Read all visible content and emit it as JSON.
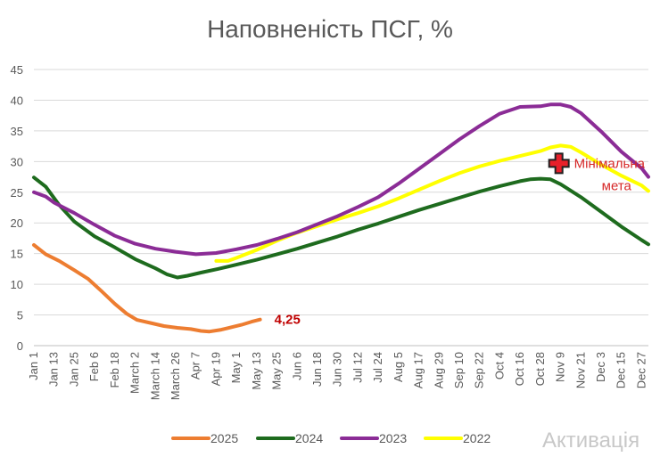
{
  "chart_data": {
    "type": "line",
    "title": "Наповненість ПСГ, %",
    "xlabel": "",
    "ylabel": "",
    "ylim": [
      0,
      45
    ],
    "y_ticks": [
      0,
      5,
      10,
      15,
      20,
      25,
      30,
      35,
      40,
      45
    ],
    "x_ticks": [
      {
        "day": 1,
        "label": "Jan 1"
      },
      {
        "day": 13,
        "label": "Jan 13"
      },
      {
        "day": 25,
        "label": "Jan 25"
      },
      {
        "day": 37,
        "label": "Feb 6"
      },
      {
        "day": 49,
        "label": "Feb 18"
      },
      {
        "day": 61,
        "label": "March 2"
      },
      {
        "day": 73,
        "label": "March 14"
      },
      {
        "day": 85,
        "label": "March 26"
      },
      {
        "day": 97,
        "label": "Apr 7"
      },
      {
        "day": 109,
        "label": "Apr 19"
      },
      {
        "day": 121,
        "label": "May 1"
      },
      {
        "day": 133,
        "label": "May 13"
      },
      {
        "day": 145,
        "label": "May 25"
      },
      {
        "day": 157,
        "label": "Jun 6"
      },
      {
        "day": 169,
        "label": "Jun 18"
      },
      {
        "day": 181,
        "label": "Jun 30"
      },
      {
        "day": 193,
        "label": "Jul 12"
      },
      {
        "day": 205,
        "label": "Jul 24"
      },
      {
        "day": 217,
        "label": "Aug 5"
      },
      {
        "day": 229,
        "label": "Aug 17"
      },
      {
        "day": 241,
        "label": "Aug 29"
      },
      {
        "day": 253,
        "label": "Sep 10"
      },
      {
        "day": 265,
        "label": "Sep 22"
      },
      {
        "day": 277,
        "label": "Oct 4"
      },
      {
        "day": 289,
        "label": "Oct 16"
      },
      {
        "day": 301,
        "label": "Oct 28"
      },
      {
        "day": 313,
        "label": "Nov 9"
      },
      {
        "day": 325,
        "label": "Nov 21"
      },
      {
        "day": 337,
        "label": "Dec 3"
      },
      {
        "day": 349,
        "label": "Dec 15"
      },
      {
        "day": 361,
        "label": "Dec 27"
      }
    ],
    "x_range": [
      1,
      365
    ],
    "grid": true,
    "legend_position": "bottom",
    "series": [
      {
        "name": "2025",
        "color": "#ed7d31",
        "x": [
          1,
          8,
          16,
          25,
          33,
          41,
          49,
          56,
          62,
          70,
          78,
          86,
          94,
          100,
          105,
          112,
          118,
          124,
          130,
          135
        ],
        "y": [
          16.4,
          14.9,
          13.8,
          12.3,
          10.9,
          8.9,
          6.8,
          5.2,
          4.2,
          3.7,
          3.2,
          2.9,
          2.7,
          2.4,
          2.3,
          2.6,
          3.0,
          3.4,
          3.9,
          4.25
        ]
      },
      {
        "name": "2024",
        "color": "#1e6b1e",
        "x": [
          1,
          8,
          16,
          25,
          37,
          49,
          61,
          73,
          80,
          86,
          92,
          100,
          110,
          121,
          133,
          145,
          157,
          169,
          181,
          193,
          205,
          217,
          229,
          241,
          253,
          265,
          277,
          289,
          295,
          301,
          307,
          313,
          325,
          337,
          349,
          361,
          365
        ],
        "y": [
          27.4,
          25.9,
          22.9,
          20.2,
          17.8,
          16.0,
          14.1,
          12.6,
          11.6,
          11.1,
          11.4,
          11.9,
          12.5,
          13.2,
          14.0,
          14.9,
          15.8,
          16.8,
          17.8,
          18.9,
          19.9,
          21.0,
          22.1,
          23.1,
          24.1,
          25.1,
          26.0,
          26.8,
          27.1,
          27.2,
          27.1,
          26.3,
          24.2,
          21.8,
          19.4,
          17.2,
          16.5
        ]
      },
      {
        "name": "2023",
        "color": "#8b2c96",
        "x": [
          1,
          8,
          13,
          25,
          37,
          49,
          61,
          73,
          85,
          97,
          109,
          121,
          133,
          145,
          157,
          169,
          181,
          193,
          205,
          217,
          229,
          241,
          253,
          265,
          277,
          289,
          301,
          307,
          313,
          319,
          325,
          337,
          349,
          361,
          365
        ],
        "y": [
          25.0,
          24.3,
          23.3,
          21.6,
          19.7,
          17.9,
          16.6,
          15.8,
          15.3,
          14.9,
          15.1,
          15.7,
          16.4,
          17.4,
          18.5,
          19.8,
          21.1,
          22.6,
          24.2,
          26.4,
          28.8,
          31.2,
          33.6,
          35.8,
          37.8,
          38.9,
          39.0,
          39.3,
          39.3,
          38.9,
          37.9,
          34.9,
          31.6,
          28.9,
          27.5
        ]
      },
      {
        "name": "2022",
        "color": "#ffff00",
        "x": [
          109,
          116,
          121,
          133,
          145,
          157,
          169,
          181,
          193,
          205,
          217,
          229,
          241,
          253,
          265,
          277,
          289,
          301,
          307,
          313,
          319,
          325,
          337,
          349,
          361,
          365
        ],
        "y": [
          13.8,
          13.8,
          14.3,
          15.6,
          17.1,
          18.4,
          19.5,
          20.6,
          21.6,
          22.7,
          24.0,
          25.4,
          26.8,
          28.1,
          29.2,
          30.1,
          30.9,
          31.7,
          32.3,
          32.6,
          32.4,
          31.5,
          29.5,
          27.7,
          26.1,
          25.2
        ]
      }
    ],
    "annotations": {
      "last_value_label": "4,25",
      "target_label_line1": "Мінімальна",
      "target_label_line2": "мета",
      "target_point": {
        "x": 312,
        "y": 29.7
      }
    }
  },
  "watermark": "Активація"
}
